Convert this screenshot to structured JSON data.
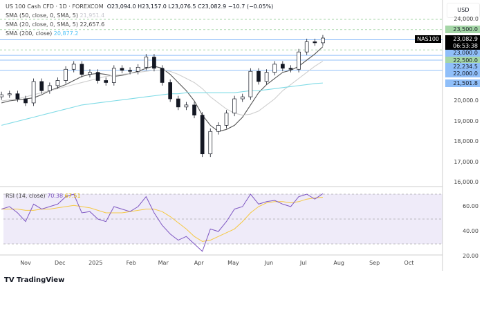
{
  "header": {
    "symbol_line": "US 100 Cash CFD · 1D · FOREXCOM",
    "open": "O23,094.0",
    "high": "H23,157.0",
    "low": "L23,076.5",
    "close": "C23,082.9",
    "change": "−10.7 (−0.05%)",
    "sma50_label": "SMA (50, close, 0, SMA, 5)",
    "sma50_value": "21,951.4",
    "sma20_label": "SMA (20, close, 0, SMA, 5)",
    "sma20_value": "22,657.6",
    "sma200_label": "SMA (200, close)",
    "sma200_value": "20,877.2",
    "rsi_label": "RSI (14, close)",
    "rsi_value": "70.38",
    "rsi_ma_value": "67.51"
  },
  "currency": "USD",
  "symbol_tag": "NAS100",
  "last_price": "23,082.9",
  "countdown": "06:53:38",
  "price_ticks": [
    "24,000.0",
    "20,000.0",
    "19,000.0",
    "18,000.0",
    "17,000.0",
    "16,000.0"
  ],
  "rsi_ticks": [
    "60.00",
    "40.00",
    "20.00"
  ],
  "levels": [
    {
      "label": "23,500.0",
      "value": 23500,
      "color": "#a5d6a7",
      "style": "dashed"
    },
    {
      "label": "23,000.0",
      "value": 23000,
      "color": "#90bff9",
      "style": "solid"
    },
    {
      "label": "22,500.0",
      "value": 22500,
      "color": "#a5d6a7",
      "style": "dashed"
    },
    {
      "label": "22,234.5",
      "value": 22234.5,
      "color": "#90bff9",
      "style": "solid"
    },
    {
      "label": "22,000.0",
      "value": 22000,
      "color": "#90bff9",
      "style": "solid"
    },
    {
      "label": "21,501.8",
      "value": 21501.8,
      "color": "#90bff9",
      "style": "solid"
    }
  ],
  "x_ticks": [
    {
      "label": "Nov",
      "date": "2024-11-01"
    },
    {
      "label": "Dec",
      "date": "2024-12-01"
    },
    {
      "label": "2025",
      "date": "2025-01-01"
    },
    {
      "label": "Feb",
      "date": "2025-02-01"
    },
    {
      "label": "Mar",
      "date": "2025-03-01"
    },
    {
      "label": "Apr",
      "date": "2025-04-01"
    },
    {
      "label": "May",
      "date": "2025-05-01"
    },
    {
      "label": "Jun",
      "date": "2025-06-01"
    },
    {
      "label": "Jul",
      "date": "2025-07-01"
    },
    {
      "label": "Aug",
      "date": "2025-08-01"
    },
    {
      "label": "Sep",
      "date": "2025-09-01"
    },
    {
      "label": "Oct",
      "date": "2025-10-01"
    }
  ],
  "brand": "TradingView",
  "chart_data": {
    "type": "candlestick",
    "ylim": [
      16000,
      24000
    ],
    "rsi_ylim": [
      20,
      75
    ],
    "rsi_bands": [
      70,
      50,
      30
    ],
    "dates": [
      "2024-10-11",
      "2024-10-18",
      "2024-10-25",
      "2024-11-01",
      "2024-11-08",
      "2024-11-15",
      "2024-11-22",
      "2024-11-29",
      "2024-12-06",
      "2024-12-13",
      "2024-12-20",
      "2024-12-27",
      "2025-01-03",
      "2025-01-10",
      "2025-01-17",
      "2025-01-24",
      "2025-01-31",
      "2025-02-07",
      "2025-02-14",
      "2025-02-21",
      "2025-02-28",
      "2025-03-07",
      "2025-03-14",
      "2025-03-21",
      "2025-03-28",
      "2025-04-04",
      "2025-04-11",
      "2025-04-18",
      "2025-04-25",
      "2025-05-02",
      "2025-05-09",
      "2025-05-16",
      "2025-05-23",
      "2025-05-30",
      "2025-06-06",
      "2025-06-13",
      "2025-06-20",
      "2025-06-27",
      "2025-07-04",
      "2025-07-11",
      "2025-07-18"
    ],
    "close": [
      20300,
      20350,
      20100,
      19900,
      20950,
      20500,
      20750,
      21000,
      21550,
      21800,
      21300,
      21400,
      21000,
      20900,
      21600,
      21500,
      21450,
      21650,
      22150,
      21600,
      20900,
      20100,
      19700,
      19800,
      19300,
      17400,
      18500,
      18800,
      19400,
      20100,
      20200,
      21450,
      20950,
      21400,
      21800,
      21600,
      21550,
      22400,
      22900,
      22850,
      23083
    ],
    "series": [
      {
        "name": "SMA (20, close, 0, SMA, 5)",
        "color": "#555555",
        "values": [
          19900,
          20000,
          20050,
          20100,
          20150,
          20300,
          20500,
          20650,
          20800,
          21000,
          21200,
          21300,
          21350,
          21300,
          21200,
          21250,
          21350,
          21450,
          21600,
          21700,
          21600,
          21300,
          20900,
          20500,
          20000,
          19300,
          18800,
          18500,
          18600,
          18800,
          19200,
          19800,
          20400,
          20800,
          21100,
          21400,
          21500,
          21700,
          22000,
          22300,
          22658
        ]
      },
      {
        "name": "SMA (50, close, 0, SMA, 5)",
        "color": "#cfcfcf",
        "values": [
          20000,
          20050,
          20100,
          20200,
          20300,
          20400,
          20500,
          20600,
          20700,
          20800,
          20900,
          21000,
          21100,
          21200,
          21250,
          21300,
          21350,
          21400,
          21450,
          21500,
          21500,
          21450,
          21300,
          21100,
          20900,
          20600,
          20200,
          19900,
          19600,
          19400,
          19300,
          19350,
          19500,
          19800,
          20100,
          20500,
          20800,
          21100,
          21400,
          21700,
          21951
        ]
      },
      {
        "name": "SMA (200, close)",
        "color": "#7fdbe6",
        "values": [
          18800,
          18900,
          19000,
          19100,
          19200,
          19300,
          19400,
          19500,
          19600,
          19700,
          19800,
          19850,
          19900,
          19950,
          20000,
          20050,
          20100,
          20150,
          20200,
          20250,
          20300,
          20350,
          20350,
          20400,
          20400,
          20400,
          20400,
          20400,
          20400,
          20400,
          20450,
          20500,
          20500,
          20550,
          20600,
          20650,
          20700,
          20750,
          20800,
          20850,
          20877
        ]
      }
    ],
    "rsi": [
      58,
      60,
      55,
      48,
      62,
      58,
      60,
      62,
      68,
      70,
      55,
      56,
      50,
      48,
      60,
      58,
      56,
      60,
      68,
      55,
      45,
      38,
      33,
      36,
      30,
      24,
      42,
      40,
      48,
      58,
      60,
      70,
      62,
      64,
      65,
      62,
      60,
      68,
      70,
      66,
      70.38
    ],
    "rsi_ma": [
      58,
      58,
      58,
      57,
      57,
      58,
      58,
      59,
      60,
      61,
      60,
      59,
      57,
      55,
      55,
      55,
      56,
      57,
      58,
      58,
      56,
      52,
      47,
      42,
      36,
      32,
      33,
      36,
      39,
      42,
      48,
      55,
      60,
      63,
      64,
      64,
      63,
      64,
      66,
      67,
      67.51
    ],
    "colors": {
      "candle": "#131722",
      "rsi": "#7e57c2",
      "rsi_ma": "#f5c842",
      "rsi_bg": "#efebf9"
    }
  }
}
